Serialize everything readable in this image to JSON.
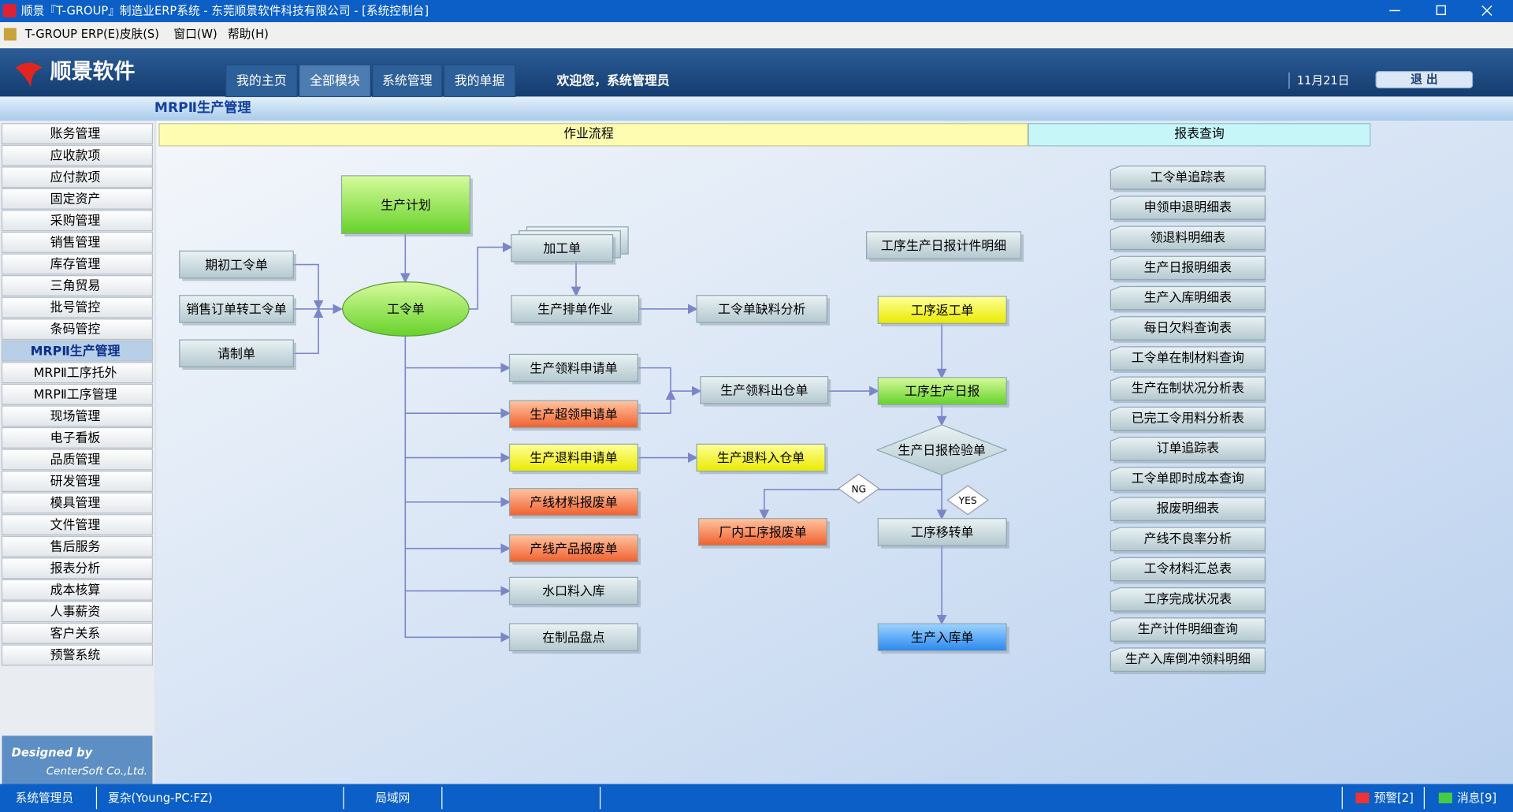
{
  "window": {
    "title": "顺景『T-GROUP』制造业ERP系统 - 东莞顺景软件科技有限公司 - [系统控制台]"
  },
  "menu": [
    "T-GROUP ERP(E)",
    "皮肤(S)",
    "窗口(W)",
    "帮助(H)"
  ],
  "header": {
    "logo": "顺景软件",
    "tabs": [
      "我的主页",
      "全部模块",
      "系统管理",
      "我的单据"
    ],
    "welcome": "欢迎您，系统管理员",
    "date": "11月21日",
    "logout": "退 出"
  },
  "section_title": "MRPⅡ生产管理",
  "sidebar": [
    "账务管理",
    "应收款项",
    "应付款项",
    "固定资产",
    "采购管理",
    "销售管理",
    "库存管理",
    "三角贸易",
    "批号管控",
    "条码管控",
    "MRPⅡ生产管理",
    "MRPⅡ工序托外",
    "MRPⅡ工序管理",
    "现场管理",
    "电子看板",
    "品质管理",
    "研发管理",
    "模具管理",
    "文件管理",
    "售后服务",
    "报表分析",
    "成本核算",
    "人事薪资",
    "客户关系",
    "预警系统"
  ],
  "tabs": [
    "作业流程",
    "报表查询"
  ],
  "flow": {
    "nodes": [
      "生产计划",
      "期初工令单",
      "销售订单转工令单",
      "请制单",
      "工令单",
      "加工单",
      "生产排单作业",
      "工令单缺料分析",
      "生产领料申请单",
      "生产超领申请单",
      "生产退料申请单",
      "产线材料报废单",
      "产线产品报废单",
      "水口料入库",
      "在制品盘点",
      "生产领料出仓单",
      "生产退料入仓单",
      "工序生产日报计件明细",
      "工序返工单",
      "工序生产日报",
      "生产日报检验单",
      "厂内工序报废单",
      "工序移转单",
      "生产入库单"
    ],
    "ng": "NG",
    "yes": "YES"
  },
  "reports": [
    "工令单追踪表",
    "申领申退明细表",
    "领退料明细表",
    "生产日报明细表",
    "生产入库明细表",
    "每日欠料查询表",
    "工令单在制材料查询",
    "生产在制状况分析表",
    "已完工令用料分析表",
    "订单追踪表",
    "工令单即时成本查询",
    "报废明细表",
    "产线不良率分析",
    "工令材料汇总表",
    "工序完成状况表",
    "生产计件明细查询",
    "生产入库倒冲领料明细"
  ],
  "footer": {
    "designed_by": "Designed by",
    "company": "CenterSoft Co.,Ltd."
  },
  "status": [
    "系统管理员",
    "夏杂(Young-PC:FZ)",
    "局域网",
    "预警[2]",
    "消息[9]"
  ]
}
